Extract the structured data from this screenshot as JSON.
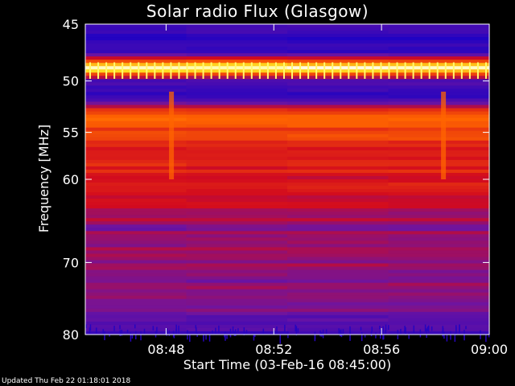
{
  "chart_data": {
    "type": "heatmap",
    "title": "Solar radio Flux (Glasgow)",
    "xlabel": "Start Time (03-Feb-16 08:45:00)",
    "ylabel": "Frequency [MHz]",
    "x_range": [
      "08:45",
      "09:00"
    ],
    "x_range_minutes": [
      0,
      15
    ],
    "x_ticks": [
      {
        "label": "08:48",
        "minute": 3
      },
      {
        "label": "08:52",
        "minute": 7
      },
      {
        "label": "08:56",
        "minute": 11
      },
      {
        "label": "09:00",
        "minute": 15
      }
    ],
    "y_range": [
      45,
      80
    ],
    "y_scale": "log",
    "y_ticks": [
      45,
      50,
      55,
      60,
      70,
      80
    ],
    "grid": false,
    "colormap": "blue-red-yellow-white",
    "colors": {
      "background": "#000000",
      "low": "#1818c8",
      "mid": "#c81414",
      "high": "#ffff60",
      "max": "#ffffff"
    },
    "frequency_profile": [
      {
        "freq": 45.0,
        "level": 0.1
      },
      {
        "freq": 47.5,
        "level": 0.08
      },
      {
        "freq": 48.4,
        "level": 0.8
      },
      {
        "freq": 48.8,
        "level": 1.0
      },
      {
        "freq": 49.2,
        "level": 0.75
      },
      {
        "freq": 50.0,
        "level": 0.12
      },
      {
        "freq": 51.2,
        "level": 0.1
      },
      {
        "freq": 52.0,
        "level": 0.18
      },
      {
        "freq": 52.8,
        "level": 0.55
      },
      {
        "freq": 53.3,
        "level": 0.72
      },
      {
        "freq": 54.0,
        "level": 0.65
      },
      {
        "freq": 55.0,
        "level": 0.6
      },
      {
        "freq": 57.0,
        "level": 0.5
      },
      {
        "freq": 60.0,
        "level": 0.48
      },
      {
        "freq": 63.0,
        "level": 0.42
      },
      {
        "freq": 66.0,
        "level": 0.3
      },
      {
        "freq": 70.0,
        "level": 0.33
      },
      {
        "freq": 74.0,
        "level": 0.3
      },
      {
        "freq": 78.0,
        "level": 0.22
      },
      {
        "freq": 80.0,
        "level": 0.12
      }
    ],
    "bursts": [
      {
        "minute": 3.2,
        "freq_range": [
          51,
          60
        ],
        "level": 0.7
      },
      {
        "minute": 13.3,
        "freq_range": [
          51,
          60
        ],
        "level": 0.7
      }
    ]
  },
  "footer": {
    "updated": "Updated Thu Feb 22 01:18:01 2018"
  }
}
